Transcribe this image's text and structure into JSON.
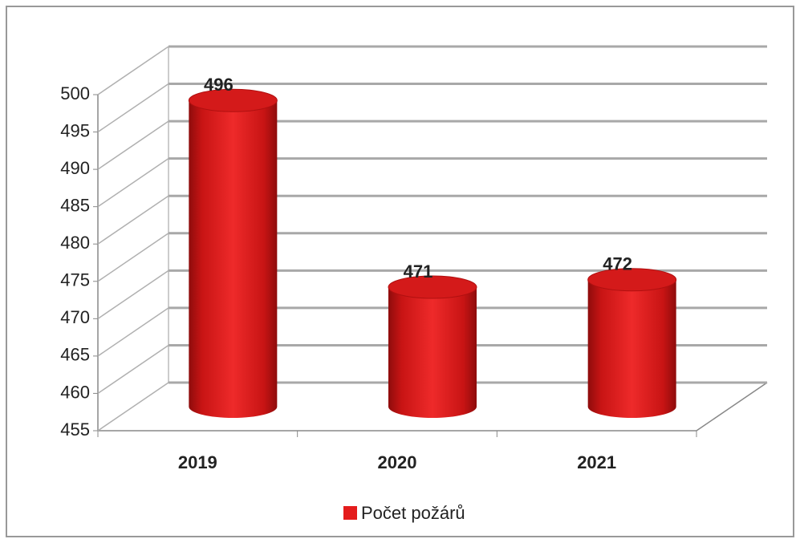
{
  "chart_data": {
    "type": "bar",
    "categories": [
      "2019",
      "2020",
      "2021"
    ],
    "series": [
      {
        "name": "Počet požárů",
        "color": "#e41c1c",
        "values": [
          496,
          471,
          472
        ]
      }
    ],
    "ylim": [
      455,
      500
    ],
    "yticks": [
      455,
      460,
      465,
      470,
      475,
      480,
      485,
      490,
      495,
      500
    ],
    "grid": true,
    "legend": "bottom"
  }
}
